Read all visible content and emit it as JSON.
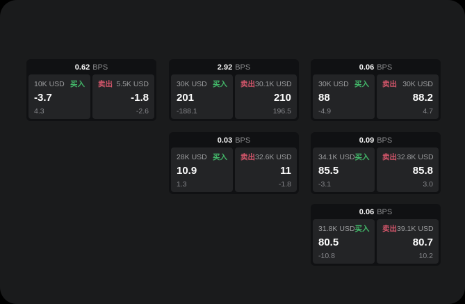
{
  "labels": {
    "bps_unit": "BPS",
    "buy": "买入",
    "sell": "卖出"
  },
  "colors": {
    "buy_green": "#43b96a",
    "sell_red": "#d4566b",
    "window_bg": "#1a1b1c",
    "card_bg": "#101113",
    "panel_bg": "#232426"
  },
  "cards": [
    {
      "bps": "0.62",
      "buy": {
        "amount": "10K USD",
        "value": "-3.7",
        "delta": "4.3"
      },
      "sell": {
        "amount": "5.5K USD",
        "value": "-1.8",
        "delta": "-2.6"
      }
    },
    {
      "bps": "2.92",
      "buy": {
        "amount": "30K USD",
        "value": "201",
        "delta": "-188.1"
      },
      "sell": {
        "amount": "30.1K USD",
        "value": "210",
        "delta": "196.5"
      }
    },
    {
      "bps": "0.06",
      "buy": {
        "amount": "30K USD",
        "value": "88",
        "delta": "-4.9"
      },
      "sell": {
        "amount": "30K USD",
        "value": "88.2",
        "delta": "4.7"
      }
    },
    {
      "bps": "0.03",
      "buy": {
        "amount": "28K USD",
        "value": "10.9",
        "delta": "1.3"
      },
      "sell": {
        "amount": "32.6K USD",
        "value": "11",
        "delta": "-1.8"
      }
    },
    {
      "bps": "0.09",
      "buy": {
        "amount": "34.1K USD",
        "value": "85.5",
        "delta": "-3.1"
      },
      "sell": {
        "amount": "32.8K USD",
        "value": "85.8",
        "delta": "3.0"
      }
    },
    {
      "bps": "0.06",
      "buy": {
        "amount": "31.8K USD",
        "value": "80.5",
        "delta": "-10.8"
      },
      "sell": {
        "amount": "39.1K USD",
        "value": "80.7",
        "delta": "10.2"
      }
    }
  ]
}
